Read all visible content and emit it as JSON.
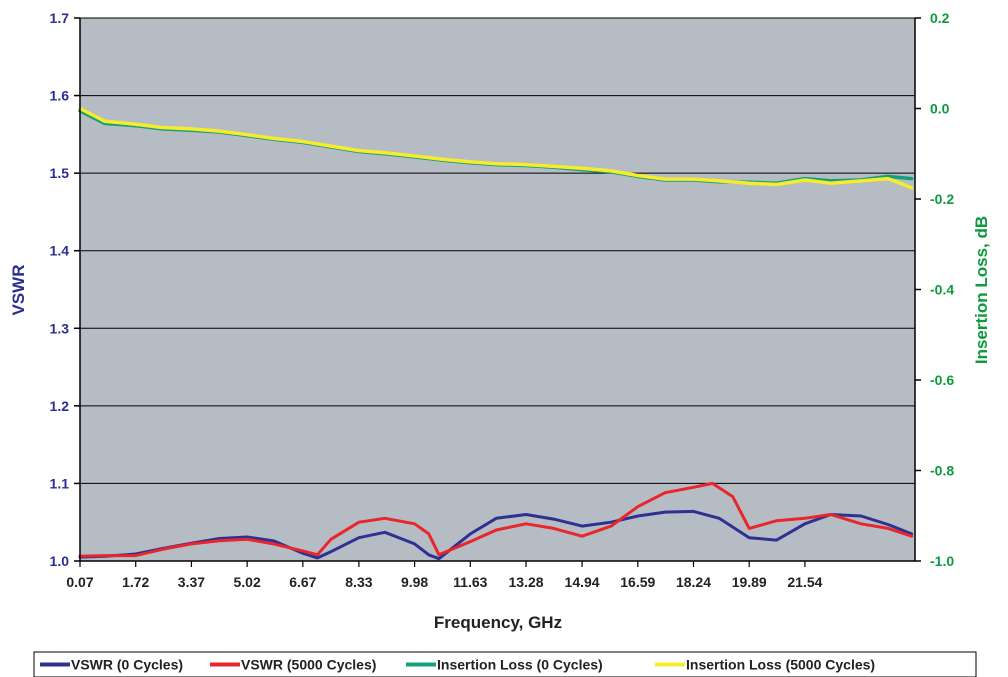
{
  "chart_data": {
    "type": "line",
    "title": "",
    "xlabel": "Frequency, GHz",
    "ylabel_left": "VSWR",
    "ylabel_right": "Insertion Loss, dB",
    "x_range": [
      0.07,
      24.8
    ],
    "x_tick_labels": [
      "0.07",
      "1.72",
      "3.37",
      "5.02",
      "6.67",
      "8.33",
      "9.98",
      "11.63",
      "13.28",
      "14.94",
      "16.59",
      "18.24",
      "19.89",
      "21.54"
    ],
    "y_left_range": [
      1.0,
      1.7
    ],
    "y_left_tick_labels": [
      "1.0",
      "1.1",
      "1.2",
      "1.3",
      "1.4",
      "1.5",
      "1.6",
      "1.7"
    ],
    "y_right_range": [
      -1.0,
      0.2
    ],
    "y_right_tick_labels": [
      "-1.0",
      "-0.8",
      "-0.6",
      "-0.4",
      "-0.2",
      "0.0",
      "0.2"
    ],
    "grid": "horizontal",
    "legend_position": "bottom",
    "colors": {
      "plot_bg": "#b5bcc3",
      "left_axis_text": "#2b2f8f",
      "right_axis_text": "#0c9a3c"
    },
    "series": [
      {
        "name": "VSWR (0 Cycles)",
        "axis": "left",
        "color": "#2e3192",
        "x": [
          0.07,
          0.8,
          1.72,
          2.5,
          3.37,
          4.2,
          5.02,
          5.8,
          6.67,
          7.1,
          7.5,
          8.33,
          9.1,
          9.98,
          10.4,
          10.7,
          11.63,
          12.4,
          13.28,
          14.1,
          14.94,
          15.8,
          16.59,
          17.4,
          18.24,
          19.0,
          19.89,
          20.7,
          21.54,
          22.3,
          23.2,
          24.0,
          24.7
        ],
        "values": [
          1.005,
          1.006,
          1.009,
          1.016,
          1.023,
          1.029,
          1.031,
          1.026,
          1.01,
          1.004,
          1.012,
          1.03,
          1.037,
          1.022,
          1.008,
          1.003,
          1.035,
          1.055,
          1.06,
          1.054,
          1.045,
          1.05,
          1.058,
          1.063,
          1.064,
          1.055,
          1.03,
          1.027,
          1.048,
          1.06,
          1.058,
          1.047,
          1.035
        ]
      },
      {
        "name": "VSWR (5000 Cycles)",
        "axis": "left",
        "color": "#e8262b",
        "x": [
          0.07,
          0.8,
          1.72,
          2.5,
          3.37,
          4.2,
          5.02,
          5.8,
          6.67,
          7.1,
          7.5,
          8.33,
          9.1,
          9.98,
          10.4,
          10.7,
          11.63,
          12.4,
          13.28,
          14.1,
          14.94,
          15.8,
          16.59,
          17.4,
          18.24,
          18.8,
          19.4,
          19.89,
          20.7,
          21.54,
          22.3,
          23.2,
          24.0,
          24.7
        ],
        "values": [
          1.006,
          1.007,
          1.007,
          1.015,
          1.022,
          1.026,
          1.028,
          1.022,
          1.013,
          1.008,
          1.028,
          1.05,
          1.055,
          1.048,
          1.035,
          1.008,
          1.025,
          1.04,
          1.048,
          1.042,
          1.032,
          1.045,
          1.07,
          1.088,
          1.095,
          1.1,
          1.083,
          1.042,
          1.052,
          1.055,
          1.06,
          1.048,
          1.042,
          1.032
        ]
      },
      {
        "name": "Insertion Loss (0 Cycles)",
        "axis": "right",
        "color": "#129f7a",
        "x": [
          0.07,
          0.8,
          1.72,
          2.5,
          3.37,
          4.2,
          5.02,
          5.8,
          6.67,
          7.5,
          8.33,
          9.1,
          9.98,
          10.8,
          11.63,
          12.4,
          13.28,
          14.1,
          14.94,
          15.8,
          16.59,
          17.4,
          18.24,
          19.0,
          19.89,
          20.7,
          21.54,
          22.3,
          23.2,
          24.0,
          24.7
        ],
        "values": [
          -0.005,
          -0.033,
          -0.038,
          -0.045,
          -0.048,
          -0.052,
          -0.06,
          -0.068,
          -0.075,
          -0.085,
          -0.095,
          -0.1,
          -0.107,
          -0.114,
          -0.12,
          -0.124,
          -0.126,
          -0.13,
          -0.135,
          -0.14,
          -0.15,
          -0.158,
          -0.158,
          -0.162,
          -0.163,
          -0.165,
          -0.155,
          -0.16,
          -0.158,
          -0.15,
          -0.155
        ]
      },
      {
        "name": "Insertion Loss (5000 Cycles)",
        "axis": "right",
        "color": "#f7ec2c",
        "x": [
          0.07,
          0.8,
          1.72,
          2.5,
          3.37,
          4.2,
          5.02,
          5.8,
          6.67,
          7.5,
          8.33,
          9.1,
          9.98,
          10.8,
          11.63,
          12.4,
          13.28,
          14.1,
          14.94,
          15.8,
          16.59,
          17.4,
          18.24,
          19.0,
          19.89,
          20.7,
          21.54,
          22.3,
          23.2,
          24.0,
          24.7
        ],
        "values": [
          0.0,
          -0.028,
          -0.035,
          -0.042,
          -0.045,
          -0.05,
          -0.058,
          -0.066,
          -0.073,
          -0.083,
          -0.093,
          -0.098,
          -0.105,
          -0.112,
          -0.118,
          -0.122,
          -0.124,
          -0.128,
          -0.132,
          -0.138,
          -0.148,
          -0.156,
          -0.156,
          -0.16,
          -0.165,
          -0.168,
          -0.158,
          -0.165,
          -0.16,
          -0.155,
          -0.175
        ]
      }
    ]
  }
}
